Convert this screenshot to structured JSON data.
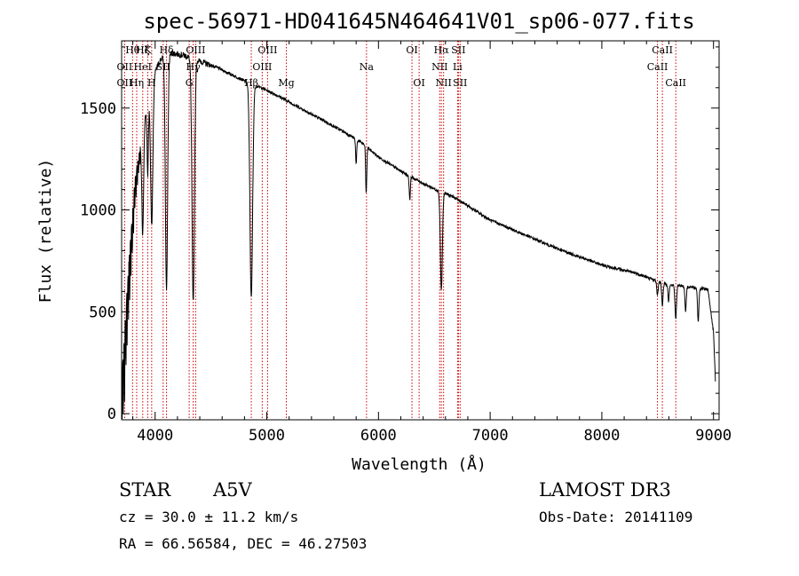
{
  "chart_data": {
    "type": "line",
    "title": "spec-56971-HD041645N464641V01_sp06-077.fits",
    "xlabel": "Wavelength (Å)",
    "ylabel": "Flux (relative)",
    "xlim": [
      3700,
      9050
    ],
    "ylim": [
      -30,
      1830
    ],
    "xticks": [
      4000,
      5000,
      6000,
      7000,
      8000,
      9000
    ],
    "yticks": [
      0,
      500,
      1000,
      1500
    ],
    "continuum": {
      "x": [
        3700,
        3760,
        3820,
        3900,
        3980,
        4050,
        4150,
        4250,
        4400,
        4550,
        4700,
        4850,
        4950,
        5100,
        5300,
        5500,
        5700,
        5850,
        6000,
        6200,
        6400,
        6550,
        6650,
        6800,
        7000,
        7300,
        7600,
        8000,
        8300,
        8500,
        8600,
        8700,
        8800,
        8950,
        9000,
        9020
      ],
      "y": [
        150,
        700,
        1150,
        1430,
        1650,
        1740,
        1770,
        1760,
        1730,
        1700,
        1660,
        1620,
        1600,
        1560,
        1500,
        1440,
        1380,
        1330,
        1260,
        1190,
        1130,
        1090,
        1070,
        1020,
        950,
        880,
        810,
        730,
        690,
        650,
        630,
        630,
        620,
        610,
        400,
        120
      ]
    },
    "absorption_lines": [
      {
        "center": 3889,
        "depth": 500,
        "width": 8
      },
      {
        "center": 3934,
        "depth": 350,
        "width": 6
      },
      {
        "center": 3970,
        "depth": 700,
        "width": 10
      },
      {
        "center": 4102,
        "depth": 1150,
        "width": 10
      },
      {
        "center": 4341,
        "depth": 1200,
        "width": 11
      },
      {
        "center": 4861,
        "depth": 1050,
        "width": 12
      },
      {
        "center": 5890,
        "depth": 230,
        "width": 5
      },
      {
        "center": 5800,
        "depth": 120,
        "width": 5
      },
      {
        "center": 6280,
        "depth": 120,
        "width": 5
      },
      {
        "center": 6563,
        "depth": 480,
        "width": 9
      },
      {
        "center": 8498,
        "depth": 70,
        "width": 6
      },
      {
        "center": 8542,
        "depth": 110,
        "width": 6
      },
      {
        "center": 8598,
        "depth": 80,
        "width": 5
      },
      {
        "center": 8662,
        "depth": 160,
        "width": 7
      },
      {
        "center": 8750,
        "depth": 120,
        "width": 6
      },
      {
        "center": 8863,
        "depth": 160,
        "width": 6
      }
    ],
    "line_markers": [
      {
        "label": "Hθ",
        "wavelength": 3798,
        "row": 0
      },
      {
        "label": "OII",
        "wavelength": 3727,
        "row": 1
      },
      {
        "label": "OII",
        "wavelength": 3727,
        "row": 2
      },
      {
        "label": "Hη",
        "wavelength": 3835,
        "row": 2
      },
      {
        "label": "HeI",
        "wavelength": 3889,
        "row": 1
      },
      {
        "label": "Hζ",
        "wavelength": 3889,
        "row": 0
      },
      {
        "label": "K",
        "wavelength": 3934,
        "row": 0
      },
      {
        "label": "SII",
        "wavelength": 4072,
        "row": 1
      },
      {
        "label": "H",
        "wavelength": 3969,
        "row": 2
      },
      {
        "label": "Hδ",
        "wavelength": 4102,
        "row": 0
      },
      {
        "label": "Hγ",
        "wavelength": 4341,
        "row": 1
      },
      {
        "label": "OIII",
        "wavelength": 4363,
        "row": 0
      },
      {
        "label": "G",
        "wavelength": 4305,
        "row": 2
      },
      {
        "label": "Hβ",
        "wavelength": 4861,
        "row": 2
      },
      {
        "label": "OIII",
        "wavelength": 4959,
        "row": 1
      },
      {
        "label": "OIII",
        "wavelength": 5007,
        "row": 0
      },
      {
        "label": "Mg",
        "wavelength": 5175,
        "row": 2
      },
      {
        "label": "Na",
        "wavelength": 5893,
        "row": 1
      },
      {
        "label": "OI",
        "wavelength": 6300,
        "row": 0
      },
      {
        "label": "OI",
        "wavelength": 6364,
        "row": 2
      },
      {
        "label": "NII",
        "wavelength": 6548,
        "row": 1
      },
      {
        "label": "Hα",
        "wavelength": 6563,
        "row": 0
      },
      {
        "label": "NII",
        "wavelength": 6583,
        "row": 2
      },
      {
        "label": "SII",
        "wavelength": 6716,
        "row": 0
      },
      {
        "label": "Li",
        "wavelength": 6708,
        "row": 1
      },
      {
        "label": "SII",
        "wavelength": 6731,
        "row": 2
      },
      {
        "label": "CaII",
        "wavelength": 8542,
        "row": 0
      },
      {
        "label": "CaII",
        "wavelength": 8498,
        "row": 1
      },
      {
        "label": "CaII",
        "wavelength": 8662,
        "row": 2
      }
    ]
  },
  "info": {
    "object_class": "STAR",
    "subclass": "A5V",
    "survey": "LAMOST DR3",
    "cz": "cz = 30.0 ± 11.2 km/s",
    "obs_date": "Obs-Date: 20141109",
    "coords": "RA =  66.56584, DEC =  46.27503"
  }
}
